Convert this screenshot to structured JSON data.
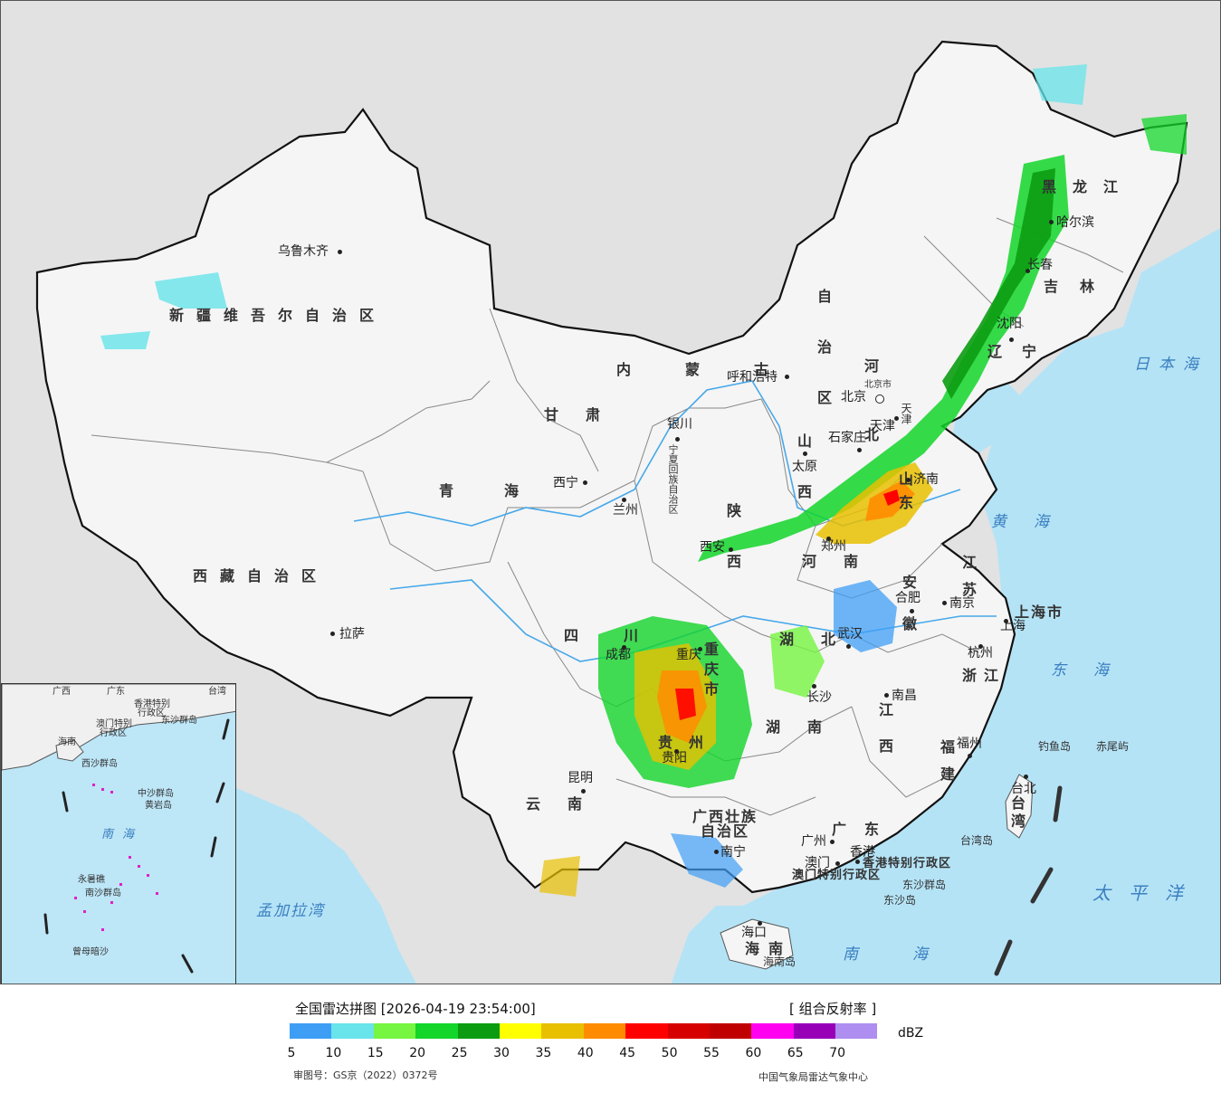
{
  "legend": {
    "title": "全国雷达拼图 [2026-04-19 23:54:00]",
    "product": "[ 组合反射率 ]",
    "unit": "dBZ",
    "colors": [
      "#3e9ef5",
      "#68e4ea",
      "#76f541",
      "#13d52a",
      "#0c9c12",
      "#ffff00",
      "#e8c000",
      "#ff8c00",
      "#ff0000",
      "#d60000",
      "#c00000",
      "#ff00f0",
      "#9800b8",
      "#ae8ef0"
    ],
    "ticks": [
      "5",
      "10",
      "15",
      "20",
      "25",
      "30",
      "35",
      "40",
      "45",
      "50",
      "55",
      "60",
      "65",
      "70"
    ],
    "approval_no": "审图号：GS京（2022）0372号",
    "source": "中国气象局雷达气象中心"
  },
  "map": {
    "colors": {
      "sea": "#b5e3f6",
      "land_outside": "#e2e2e2",
      "china_land": "#f5f5f5",
      "border": "#111111",
      "river": "#46a8ea"
    },
    "regions": [
      {
        "id": "xinjiang",
        "text": "新疆维吾尔自治区"
      },
      {
        "id": "xizang",
        "text": "西藏自治区"
      },
      {
        "id": "qinghai",
        "text": "青海"
      },
      {
        "id": "gansu",
        "text": "甘肃"
      },
      {
        "id": "neimenggu1",
        "text": "内蒙古"
      },
      {
        "id": "neimenggu2",
        "text": "自治区"
      },
      {
        "id": "heilongjiang",
        "text": "黑龙江"
      },
      {
        "id": "jilin",
        "text": "吉林"
      },
      {
        "id": "liaoning",
        "text": "辽宁"
      },
      {
        "id": "hebei",
        "text": "河北"
      },
      {
        "id": "shanxi",
        "text": "山西"
      },
      {
        "id": "shaanxi",
        "text": "陕西"
      },
      {
        "id": "shandong",
        "text": "山东"
      },
      {
        "id": "henan",
        "text": "河南"
      },
      {
        "id": "jiangsu",
        "text": "江苏"
      },
      {
        "id": "anhui",
        "text": "安徽"
      },
      {
        "id": "sichuan",
        "text": "四川"
      },
      {
        "id": "chongqing",
        "text": "重庆市"
      },
      {
        "id": "hubei",
        "text": "湖北"
      },
      {
        "id": "hunan",
        "text": "湖南"
      },
      {
        "id": "jiangxi",
        "text": "江西"
      },
      {
        "id": "zhejiang",
        "text": "浙江"
      },
      {
        "id": "fujian",
        "text": "福建"
      },
      {
        "id": "guizhou",
        "text": "贵州"
      },
      {
        "id": "yunnan",
        "text": "云南"
      },
      {
        "id": "guangxi",
        "text": "广西壮族自治区"
      },
      {
        "id": "guangdong",
        "text": "广东"
      },
      {
        "id": "hainan",
        "text": "海南"
      },
      {
        "id": "taiwan",
        "text": "台湾"
      },
      {
        "id": "shanghai",
        "text": "上海市"
      },
      {
        "id": "xianggang",
        "text": "香港特别行政区"
      },
      {
        "id": "aomen",
        "text": "澳门特别行政区"
      },
      {
        "id": "ningxia",
        "text": "宁夏回族自治区"
      },
      {
        "id": "tianjin",
        "text": "天津"
      }
    ],
    "cities": [
      {
        "id": "wulumuqi",
        "text": "乌鲁木齐"
      },
      {
        "id": "lasa",
        "text": "拉萨"
      },
      {
        "id": "xining",
        "text": "西宁"
      },
      {
        "id": "lanzhou",
        "text": "兰州"
      },
      {
        "id": "yinchuan",
        "text": "银川"
      },
      {
        "id": "huhehaote",
        "text": "呼和浩特"
      },
      {
        "id": "beijing",
        "text": "北京"
      },
      {
        "id": "tianjin_c",
        "text": "天津"
      },
      {
        "id": "shijiazhuang",
        "text": "石家庄"
      },
      {
        "id": "taiyuan",
        "text": "太原"
      },
      {
        "id": "jinan",
        "text": "济南"
      },
      {
        "id": "zhengzhou",
        "text": "郑州"
      },
      {
        "id": "xian",
        "text": "西安"
      },
      {
        "id": "hefei",
        "text": "合肥"
      },
      {
        "id": "nanjing",
        "text": "南京"
      },
      {
        "id": "shanghai_c",
        "text": "上海"
      },
      {
        "id": "hangzhou",
        "text": "杭州"
      },
      {
        "id": "wuhan",
        "text": "武汉"
      },
      {
        "id": "changsha",
        "text": "长沙"
      },
      {
        "id": "nanchang",
        "text": "南昌"
      },
      {
        "id": "fuzhou",
        "text": "福州"
      },
      {
        "id": "taibei",
        "text": "台北"
      },
      {
        "id": "chengdu",
        "text": "成都"
      },
      {
        "id": "chongqing_c",
        "text": "重庆"
      },
      {
        "id": "guiyang",
        "text": "贵阳"
      },
      {
        "id": "kunming",
        "text": "昆明"
      },
      {
        "id": "nanning",
        "text": "南宁"
      },
      {
        "id": "guangzhou",
        "text": "广州"
      },
      {
        "id": "xianggang_c",
        "text": "香港"
      },
      {
        "id": "aomen_c",
        "text": "澳门"
      },
      {
        "id": "haikou",
        "text": "海口"
      },
      {
        "id": "shenyang",
        "text": "沈阳"
      },
      {
        "id": "changchun",
        "text": "长春"
      },
      {
        "id": "haerbin",
        "text": "哈尔滨"
      },
      {
        "id": "beijing_s",
        "text": "北京市"
      }
    ],
    "seas": [
      {
        "id": "ribenhai",
        "text": "日本海"
      },
      {
        "id": "huanghai",
        "text": "黄海"
      },
      {
        "id": "donghai",
        "text": "东海"
      },
      {
        "id": "taipingyang",
        "text": "太平洋"
      },
      {
        "id": "nanhai",
        "text": "南海"
      },
      {
        "id": "mengjialawan",
        "text": "孟加拉湾"
      }
    ],
    "islands": [
      {
        "id": "diaoyudao",
        "text": "钓鱼岛"
      },
      {
        "id": "chiweiyu",
        "text": "赤尾屿"
      },
      {
        "id": "taiwandao",
        "text": "台湾岛"
      },
      {
        "id": "dongshaqundao",
        "text": "东沙群岛"
      },
      {
        "id": "dongshadao",
        "text": "东沙岛"
      },
      {
        "id": "hainandao",
        "text": "海南岛"
      }
    ],
    "inset": [
      {
        "id": "in_guangdong",
        "text": "广东"
      },
      {
        "id": "in_taiwan",
        "text": "台湾"
      },
      {
        "id": "in_guangxi",
        "text": "广西"
      },
      {
        "id": "in_hk",
        "text": "香港特别"
      },
      {
        "id": "in_hk2",
        "text": "行政区"
      },
      {
        "id": "in_mc",
        "text": "澳门特别"
      },
      {
        "id": "in_mc2",
        "text": "行政区"
      },
      {
        "id": "in_dongsha",
        "text": "东沙群岛"
      },
      {
        "id": "in_hainan",
        "text": "海南"
      },
      {
        "id": "in_xisha",
        "text": "西沙群岛"
      },
      {
        "id": "in_zhongsha",
        "text": "中沙群岛"
      },
      {
        "id": "in_huangyan",
        "text": "黄岩岛"
      },
      {
        "id": "in_nanhai",
        "text": "南海"
      },
      {
        "id": "in_nansha",
        "text": "南沙群岛"
      },
      {
        "id": "in_yongshu",
        "text": "永暑礁"
      },
      {
        "id": "in_zengmu",
        "text": "曾母暗沙"
      }
    ]
  }
}
